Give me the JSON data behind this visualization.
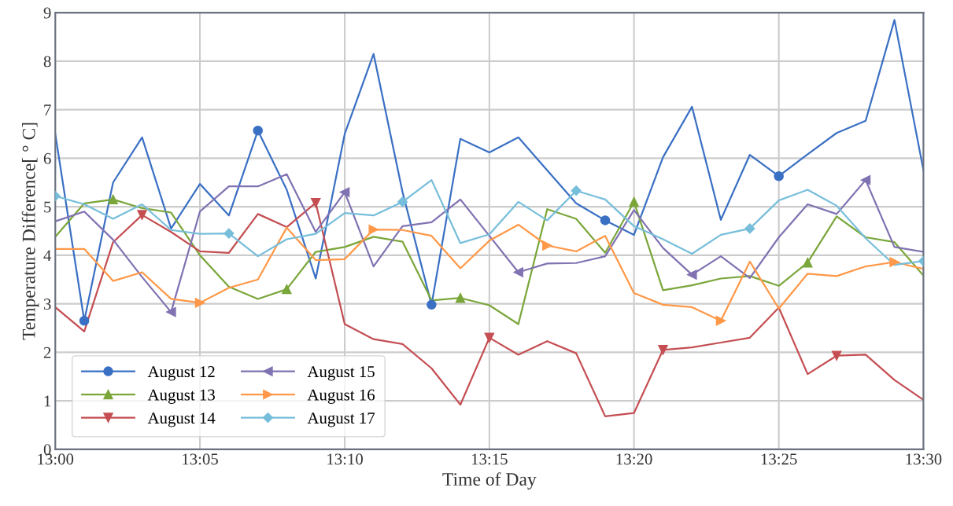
{
  "chart_data": {
    "type": "line",
    "xlabel": "Time of Day",
    "ylabel": "Temperature Difference[ ° C]",
    "x": [
      13.0,
      13.0167,
      13.0333,
      13.05,
      13.0667,
      13.0833,
      13.1,
      13.1167,
      13.1333,
      13.15,
      13.1667,
      13.1833,
      13.2,
      13.2167,
      13.2333,
      13.25,
      13.2667,
      13.2833,
      13.3,
      13.3167,
      13.3333,
      13.35,
      13.3667,
      13.3833,
      13.4,
      13.4167,
      13.4333,
      13.45,
      13.4667,
      13.4833,
      13.5
    ],
    "xlim": [
      13.0,
      13.5
    ],
    "xticks": [
      {
        "value": 13.0,
        "label": "13:00"
      },
      {
        "value": 13.0833,
        "label": "13:05"
      },
      {
        "value": 13.1667,
        "label": "13:10"
      },
      {
        "value": 13.25,
        "label": "13:15"
      },
      {
        "value": 13.3333,
        "label": "13:20"
      },
      {
        "value": 13.4167,
        "label": "13:25"
      },
      {
        "value": 13.5,
        "label": "13:30"
      }
    ],
    "ylim": [
      0,
      9
    ],
    "yticks": [
      0,
      1,
      2,
      3,
      4,
      5,
      6,
      7,
      8,
      9
    ],
    "grid": true,
    "legend": "bottom left",
    "line_style": "solid",
    "series": [
      {
        "name": "August 12",
        "color": "#3a70c4",
        "values": [
          6.5,
          2.65,
          5.5,
          6.43,
          4.55,
          5.47,
          4.82,
          6.57,
          5.35,
          3.52,
          6.5,
          8.15,
          5.3,
          2.98,
          6.4,
          6.12,
          6.43,
          5.75,
          5.07,
          4.72,
          4.42,
          6.02,
          7.06,
          4.73,
          6.07,
          5.63,
          6.08,
          6.52,
          6.77,
          8.85,
          5.75
        ]
      },
      {
        "name": "August 13",
        "color": "#7aa63a",
        "values": [
          4.38,
          5.07,
          5.15,
          4.97,
          4.88,
          4.0,
          3.35,
          3.1,
          3.3,
          4.07,
          4.17,
          4.38,
          4.28,
          3.07,
          3.12,
          2.97,
          2.58,
          4.95,
          4.75,
          4.05,
          5.1,
          3.28,
          3.38,
          3.52,
          3.57,
          3.37,
          3.85,
          4.8,
          4.37,
          4.27,
          3.58
        ]
      },
      {
        "name": "August 14",
        "color": "#c44e52",
        "values": [
          2.93,
          2.43,
          4.27,
          4.83,
          4.48,
          4.08,
          4.05,
          4.85,
          4.58,
          5.08,
          2.58,
          2.27,
          2.17,
          1.67,
          0.92,
          2.3,
          1.95,
          2.23,
          1.98,
          0.68,
          0.75,
          2.05,
          2.1,
          2.2,
          2.3,
          2.92,
          1.55,
          1.93,
          1.95,
          1.43,
          1.02
        ]
      },
      {
        "name": "August 15",
        "color": "#8172b2",
        "values": [
          4.7,
          4.9,
          4.32,
          3.55,
          2.83,
          4.9,
          5.42,
          5.42,
          5.67,
          4.48,
          5.3,
          3.77,
          4.6,
          4.68,
          5.15,
          4.4,
          3.65,
          3.83,
          3.84,
          3.98,
          4.93,
          4.15,
          3.6,
          3.98,
          3.53,
          4.37,
          5.05,
          4.85,
          5.55,
          4.17,
          4.07
        ]
      },
      {
        "name": "August 16",
        "color": "#ff9848",
        "values": [
          4.13,
          4.13,
          3.47,
          3.65,
          3.1,
          3.02,
          3.33,
          3.5,
          4.57,
          3.9,
          3.92,
          4.53,
          4.52,
          4.4,
          3.73,
          4.3,
          4.63,
          4.2,
          4.08,
          4.4,
          3.22,
          2.98,
          2.93,
          2.65,
          3.87,
          2.9,
          3.62,
          3.57,
          3.77,
          3.86,
          3.72
        ]
      },
      {
        "name": "August 17",
        "color": "#77bedb",
        "values": [
          5.22,
          5.05,
          4.75,
          5.05,
          4.52,
          4.44,
          4.45,
          3.98,
          4.33,
          4.44,
          4.87,
          4.82,
          5.1,
          5.55,
          4.25,
          4.43,
          5.1,
          4.72,
          5.33,
          5.15,
          4.6,
          4.33,
          4.03,
          4.42,
          4.55,
          5.13,
          5.35,
          5.02,
          4.35,
          3.8,
          3.88
        ]
      },
      {
        "type": "scatter",
        "color": "#3a70c4",
        "marker": "circle",
        "x": [
          13.0167,
          13.1167,
          13.2167,
          13.3167,
          13.4167
        ],
        "values": [
          2.65,
          6.57,
          2.98,
          4.72,
          5.63
        ]
      },
      {
        "type": "scatter",
        "color": "#7aa63a",
        "marker": "triangle",
        "x": [
          13.0333,
          13.1333,
          13.2333,
          13.3333,
          13.4333
        ],
        "values": [
          5.15,
          3.3,
          3.12,
          5.1,
          3.85
        ]
      },
      {
        "type": "scatter",
        "color": "#c44e52",
        "marker": "triangle-down",
        "x": [
          13.05,
          13.15,
          13.25,
          13.35,
          13.45
        ],
        "values": [
          4.83,
          5.08,
          2.3,
          2.05,
          1.93
        ]
      },
      {
        "type": "scatter",
        "color": "#8172b2",
        "marker": "triangle-left",
        "x": [
          13.0667,
          13.1667,
          13.2667,
          13.3667,
          13.4667
        ],
        "values": [
          2.83,
          5.3,
          3.65,
          3.6,
          5.55
        ]
      },
      {
        "type": "scatter",
        "color": "#ff9848",
        "marker": "triangle-right",
        "x": [
          13.0833,
          13.1833,
          13.2833,
          13.3833,
          13.4833
        ],
        "values": [
          3.02,
          4.53,
          4.2,
          2.65,
          3.86
        ]
      },
      {
        "type": "scatter",
        "color": "#77bedb",
        "marker": "diamond",
        "x": [
          13.0,
          13.1,
          13.2,
          13.3,
          13.4,
          13.5
        ],
        "values": [
          5.22,
          4.45,
          5.1,
          5.33,
          4.55,
          3.88
        ]
      }
    ]
  }
}
